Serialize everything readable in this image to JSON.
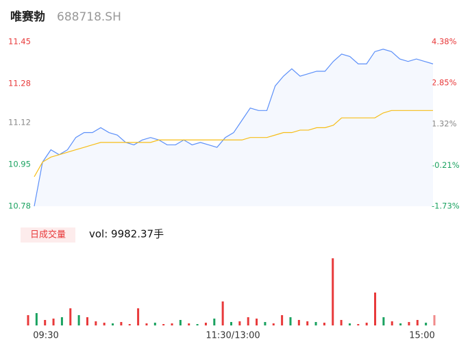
{
  "chart_data": {
    "type": "line",
    "title": "唯赛勃",
    "subtitle": "688718.SH",
    "ylim": [
      10.78,
      11.45
    ],
    "yticks": [
      11.45,
      11.28,
      11.12,
      10.95,
      10.78
    ],
    "y2lim": [
      -1.73,
      4.38
    ],
    "y2ticks": [
      {
        "value": 4.38,
        "label": "4.38%"
      },
      {
        "value": 2.85,
        "label": "2.85%"
      },
      {
        "value": 1.32,
        "label": "1.32%"
      },
      {
        "value": -0.21,
        "label": "-0.21%"
      },
      {
        "value": -1.73,
        "label": "-1.73%"
      }
    ],
    "ytick_colors": [
      "#e8393a",
      "#e8393a",
      "#888888",
      "#1aa260",
      "#1aa260"
    ],
    "x_labels": [
      "09:30",
      "11:30/13:00",
      "15:00"
    ],
    "series": [
      {
        "name": "price",
        "color": "#5b8ff9",
        "values": [
          10.78,
          10.96,
          11.01,
          10.99,
          11.01,
          11.06,
          11.08,
          11.08,
          11.1,
          11.08,
          11.07,
          11.04,
          11.03,
          11.05,
          11.06,
          11.05,
          11.03,
          11.03,
          11.05,
          11.03,
          11.04,
          11.03,
          11.02,
          11.06,
          11.08,
          11.13,
          11.18,
          11.17,
          11.17,
          11.27,
          11.31,
          11.34,
          11.31,
          11.32,
          11.33,
          11.33,
          11.37,
          11.4,
          11.39,
          11.36,
          11.36,
          11.41,
          11.42,
          11.41,
          11.38,
          11.37,
          11.38,
          11.37,
          11.36
        ]
      },
      {
        "name": "average",
        "color": "#f6bd16",
        "values": [
          10.9,
          10.96,
          10.98,
          10.99,
          11.0,
          11.01,
          11.02,
          11.03,
          11.04,
          11.04,
          11.04,
          11.04,
          11.04,
          11.04,
          11.04,
          11.05,
          11.05,
          11.05,
          11.05,
          11.05,
          11.05,
          11.05,
          11.05,
          11.05,
          11.05,
          11.05,
          11.06,
          11.06,
          11.06,
          11.07,
          11.08,
          11.08,
          11.09,
          11.09,
          11.1,
          11.1,
          11.11,
          11.14,
          11.14,
          11.14,
          11.14,
          11.14,
          11.16,
          11.17,
          11.17,
          11.17,
          11.17,
          11.17,
          11.17
        ]
      }
    ],
    "volume_label": "日成交量",
    "volume_text": "vol: 9982.37手",
    "vlim": [
      0,
      1000
    ],
    "volume": [
      150,
      180,
      80,
      100,
      120,
      250,
      150,
      120,
      60,
      40,
      30,
      50,
      20,
      250,
      30,
      40,
      20,
      30,
      80,
      30,
      20,
      40,
      100,
      350,
      50,
      60,
      120,
      100,
      50,
      30,
      150,
      120,
      80,
      60,
      50,
      40,
      980,
      80,
      30,
      20,
      40,
      480,
      120,
      60,
      30,
      50,
      80,
      40,
      150
    ],
    "volume_colors": [
      "#e8393a",
      "#1aa260",
      "#e8393a",
      "#e8393a",
      "#1aa260",
      "#e8393a",
      "#1aa260",
      "#e8393a",
      "#e8393a",
      "#e8393a",
      "#1aa260",
      "#e8393a",
      "#e8393a",
      "#e8393a",
      "#e8393a",
      "#1aa260",
      "#e8393a",
      "#e8393a",
      "#1aa260",
      "#e8393a",
      "#1aa260",
      "#e8393a",
      "#1aa260",
      "#e8393a",
      "#1aa260",
      "#e8393a",
      "#e8393a",
      "#e8393a",
      "#1aa260",
      "#e8393a",
      "#e8393a",
      "#1aa260",
      "#e8393a",
      "#e8393a",
      "#1aa260",
      "#e8393a",
      "#e8393a",
      "#e8393a",
      "#1aa260",
      "#e8393a",
      "#e8393a",
      "#e8393a",
      "#1aa260",
      "#e8393a",
      "#1aa260",
      "#e8393a",
      "#e8393a",
      "#1aa260",
      "#f08a8a"
    ]
  }
}
